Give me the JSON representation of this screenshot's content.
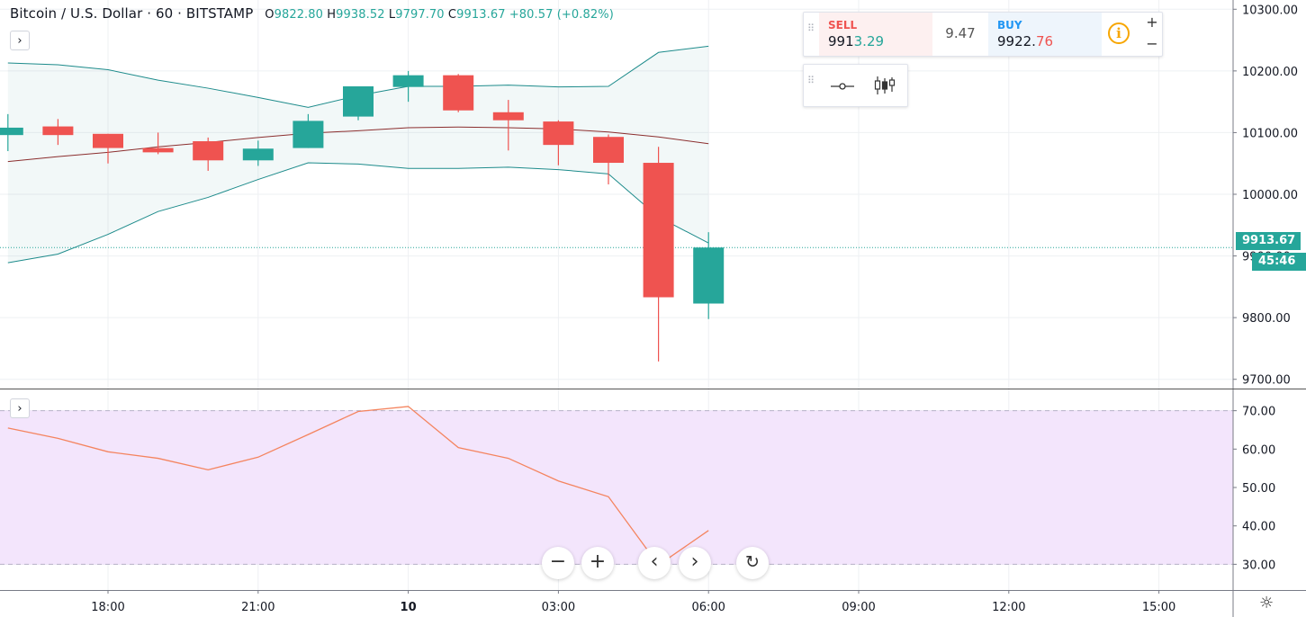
{
  "legend": {
    "symbol": "Bitcoin / U.S. Dollar",
    "interval": "60",
    "exchange": "BITSTAMP",
    "open_label": "O",
    "open": "9822.80",
    "high_label": "H",
    "high": "9938.52",
    "low_label": "L",
    "low": "9797.70",
    "close_label": "C",
    "close": "9913.67",
    "change": "+80.57 (+0.82%)"
  },
  "trade_panel": {
    "sell_label": "SELL",
    "sell_price_main": "991",
    "sell_price_tail": "3.29",
    "spread": "9.47",
    "buy_label": "BUY",
    "buy_price_main": "9922.",
    "buy_price_tail": "76",
    "info_icon": "i",
    "zoom_in": "+",
    "zoom_out": "−"
  },
  "icons": [
    "grip-icon",
    "line-style-icon",
    "bars-style-icon",
    "info-icon",
    "chevron-right-icon",
    "zoom-out-icon",
    "zoom-in-icon",
    "chevron-left-icon",
    "reset-icon",
    "gear-icon"
  ],
  "collapse_label": "›",
  "price_label": "9913.67",
  "countdown": "45:46",
  "nav": {
    "zoom_out": "−",
    "zoom_in": "+",
    "scroll_left": "‹",
    "scroll_right": "›",
    "reset": "↻"
  },
  "settings_icon": "☼",
  "colors": {
    "up": "#26a69a",
    "down": "#ef5350",
    "band": "#1d8b8b",
    "basis": "#8b2e2e",
    "rsi": "#f4845f",
    "rsi_fill": "#f3e5fc"
  },
  "chart_data": [
    {
      "type": "candlestick",
      "x_ticks": [
        "18:00",
        "21:00",
        "10",
        "03:00",
        "06:00",
        "09:00",
        "12:00",
        "15:00"
      ],
      "y_ticks": [
        "9700.00",
        "9800.00",
        "9900.00",
        "10000.00",
        "10100.00",
        "10200.00",
        "10300.00"
      ],
      "ylim": [
        9685,
        10315
      ],
      "candles": [
        {
          "t": -2.0,
          "o": 10096,
          "h": 10130,
          "l": 10070,
          "c": 10108
        },
        {
          "t": -1.0,
          "o": 10110,
          "h": 10122,
          "l": 10080,
          "c": 10096
        },
        {
          "t": 0.0,
          "o": 10098,
          "h": 10098,
          "l": 10050,
          "c": 10075
        },
        {
          "t": 1.0,
          "o": 10075,
          "h": 10100,
          "l": 10065,
          "c": 10068
        },
        {
          "t": 2.0,
          "o": 10086,
          "h": 10092,
          "l": 10038,
          "c": 10055
        },
        {
          "t": 3.0,
          "o": 10055,
          "h": 10087,
          "l": 10046,
          "c": 10074
        },
        {
          "t": 4.0,
          "o": 10075,
          "h": 10130,
          "l": 10075,
          "c": 10119
        },
        {
          "t": 5.0,
          "o": 10126,
          "h": 10175,
          "l": 10120,
          "c": 10175
        },
        {
          "t": 6.0,
          "o": 10174,
          "h": 10200,
          "l": 10150,
          "c": 10193
        },
        {
          "t": 7.0,
          "o": 10193,
          "h": 10195,
          "l": 10133,
          "c": 10136
        },
        {
          "t": 8.0,
          "o": 10133,
          "h": 10153,
          "l": 10071,
          "c": 10120
        },
        {
          "t": 9.0,
          "o": 10118,
          "h": 10120,
          "l": 10047,
          "c": 10080
        },
        {
          "t": 10.0,
          "o": 10093,
          "h": 10097,
          "l": 10016,
          "c": 10051
        },
        {
          "t": 11.0,
          "o": 10051,
          "h": 10077,
          "l": 9729,
          "c": 9833
        },
        {
          "t": 12.0,
          "o": 9822.8,
          "h": 9938.52,
          "l": 9797.7,
          "c": 9913.67
        }
      ],
      "bollinger": {
        "x": [
          -2,
          -1,
          0,
          1,
          2,
          3,
          4,
          5,
          6,
          7,
          8,
          9,
          10,
          11,
          12
        ],
        "upper": [
          10213,
          10210,
          10202,
          10185,
          10172,
          10157,
          10141,
          10160,
          10175,
          10175,
          10177,
          10174,
          10175,
          10230,
          10240
        ],
        "basis": [
          10053,
          10061,
          10068,
          10077,
          10084,
          10092,
          10099,
          10103,
          10108,
          10109,
          10108,
          10106,
          10101,
          10093,
          10082
        ],
        "lower": [
          9889,
          9903,
          9935,
          9972,
          9995,
          10024,
          10051,
          10049,
          10042,
          10042,
          10044,
          10040,
          10033,
          9963,
          9921
        ]
      },
      "last_price": 9913.67
    },
    {
      "type": "line",
      "name": "RSI",
      "x": [
        -2,
        -1,
        0,
        1,
        2,
        3,
        4,
        5,
        6,
        7,
        8,
        9,
        10,
        11,
        12
      ],
      "values": [
        65.5,
        62.8,
        59.3,
        57.6,
        54.6,
        57.9,
        63.8,
        69.8,
        71.1,
        60.4,
        57.6,
        51.7,
        47.6,
        29.8,
        38.8
      ],
      "y_ticks": [
        "30.00",
        "40.00",
        "50.00",
        "60.00",
        "70.00"
      ],
      "ylim": [
        23.3,
        75.3
      ],
      "band": [
        30,
        70
      ]
    }
  ]
}
